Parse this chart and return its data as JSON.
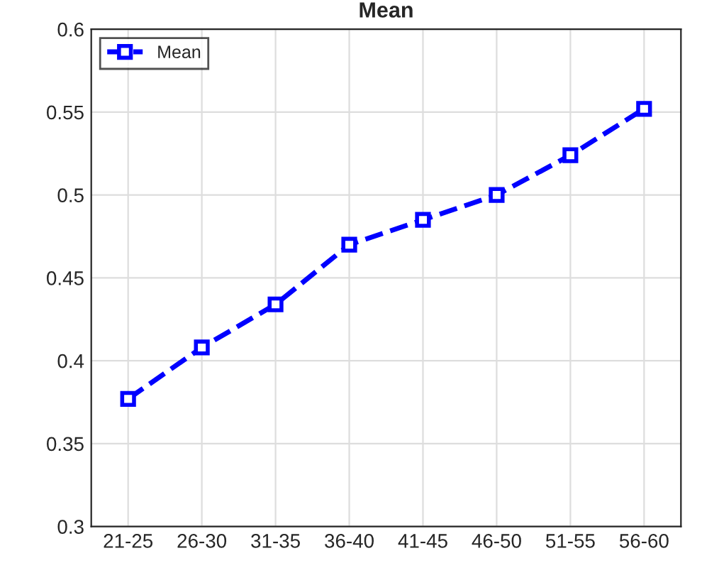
{
  "chart_data": {
    "type": "line",
    "title": "Mean",
    "categories": [
      "21-25",
      "26-30",
      "31-35",
      "36-40",
      "41-45",
      "46-50",
      "51-55",
      "56-60"
    ],
    "series": [
      {
        "name": "Mean",
        "color": "#0000ff",
        "values": [
          0.377,
          0.408,
          0.434,
          0.47,
          0.485,
          0.5,
          0.524,
          0.552
        ]
      }
    ],
    "ylim": [
      0.3,
      0.6
    ],
    "yticks": [
      0.3,
      0.35,
      0.4,
      0.45,
      0.5,
      0.55,
      0.6
    ],
    "grid": true,
    "legend": "top left",
    "marker": "square",
    "line_style": "dashed"
  }
}
